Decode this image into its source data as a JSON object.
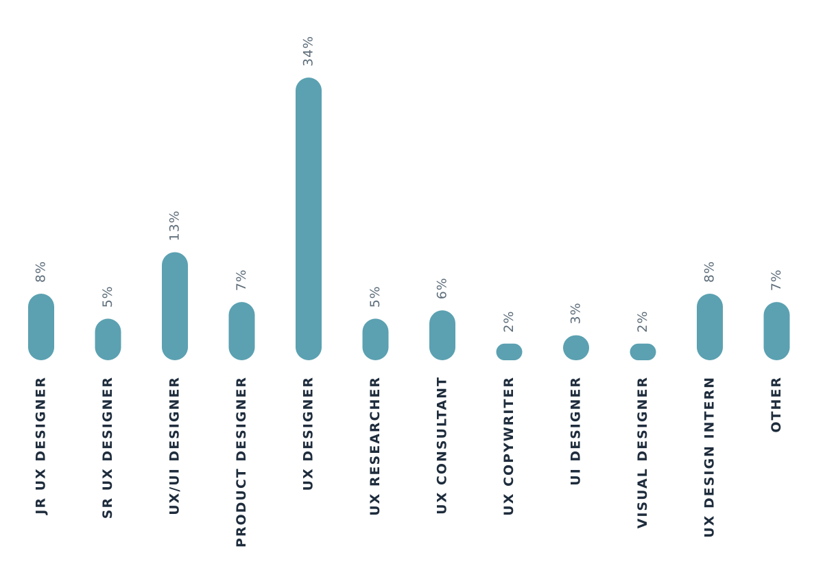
{
  "chart_data": {
    "type": "bar",
    "categories": [
      "JR UX DESIGNER",
      "SR UX DESIGNER",
      "UX/UI DESIGNER",
      "PRODUCT DESIGNER",
      "UX DESIGNER",
      "UX RESEARCHER",
      "UX CONSULTANT",
      "UX COPYWRITER",
      "UI DESIGNER",
      "VISUAL DESIGNER",
      "UX DESIGN INTERN",
      "OTHER"
    ],
    "values": [
      8,
      5,
      13,
      7,
      34,
      5,
      6,
      2,
      3,
      2,
      8,
      7
    ],
    "value_labels": [
      "8%",
      "5%",
      "13%",
      "7%",
      "34%",
      "5%",
      "6%",
      "2%",
      "3%",
      "2%",
      "8%",
      "7%"
    ],
    "color": "#5ba1b1"
  }
}
